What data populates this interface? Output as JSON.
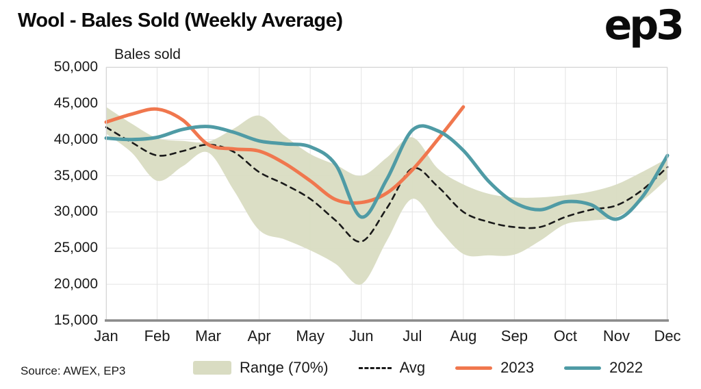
{
  "page": {
    "logo": "ep3",
    "source": "Source: AWEX, EP3"
  },
  "chart_data": {
    "type": "line",
    "title": "Wool - Bales Sold (Weekly Average)",
    "inner_axis_label": "Bales sold",
    "x_tick_labels": [
      "Jan",
      "Feb",
      "Mar",
      "Apr",
      "May",
      "Jun",
      "Jul",
      "Aug",
      "Sep",
      "Oct",
      "Nov",
      "Dec"
    ],
    "ylim": [
      15000,
      50000
    ],
    "ytick_step": 5000,
    "grid": true,
    "legend_position": "bottom",
    "colors": {
      "band": "#d9dcc2",
      "avg": "#1a1a1a",
      "y2023": "#f0774e",
      "y2022": "#4f9ba5",
      "grid": "#e3e3e3",
      "axis": "#8a8a8a",
      "border": "#d6d6d6"
    },
    "band": {
      "name": "Range (70%)",
      "color": "#d9dcc2",
      "x": [
        0,
        0.5,
        1,
        1.5,
        2,
        2.5,
        3,
        3.5,
        4,
        4.5,
        5,
        5.5,
        6,
        6.5,
        7,
        7.5,
        8,
        8.5,
        9,
        9.5,
        10,
        10.5,
        11
      ],
      "upper": [
        44500,
        42200,
        40200,
        39800,
        39700,
        41500,
        43300,
        40500,
        38000,
        36500,
        35000,
        37500,
        40300,
        36000,
        33800,
        32500,
        32000,
        32000,
        32300,
        32800,
        33800,
        35500,
        37400
      ],
      "lower": [
        40800,
        38200,
        34300,
        36300,
        38200,
        33000,
        27500,
        26200,
        24700,
        22800,
        20000,
        26000,
        31800,
        27800,
        24200,
        24000,
        24100,
        26000,
        28300,
        28800,
        29300,
        31500,
        34600
      ]
    },
    "series": [
      {
        "name": "Avg",
        "color": "#1a1a1a",
        "dash": true,
        "width": 2.6,
        "x": [
          0,
          0.5,
          1,
          1.5,
          2,
          2.5,
          3,
          3.5,
          4,
          4.5,
          5,
          5.5,
          6,
          6.5,
          7,
          7.5,
          8,
          8.5,
          9,
          9.5,
          10,
          10.5,
          11
        ],
        "values": [
          41700,
          39600,
          37800,
          38400,
          39300,
          38300,
          35500,
          33800,
          31800,
          28800,
          25900,
          30500,
          36000,
          33500,
          30000,
          28600,
          27900,
          27900,
          29300,
          30300,
          30900,
          33000,
          36200
        ]
      },
      {
        "name": "2023",
        "color": "#f0774e",
        "dash": false,
        "width": 5,
        "x": [
          0,
          0.5,
          1,
          1.5,
          2,
          2.5,
          3,
          3.5,
          4,
          4.5,
          5,
          5.5,
          6,
          6.5,
          7
        ],
        "values": [
          42400,
          43500,
          44200,
          42700,
          39300,
          38700,
          38400,
          36700,
          34300,
          31700,
          31300,
          32600,
          35800,
          40000,
          44500
        ]
      },
      {
        "name": "2022",
        "color": "#4f9ba5",
        "dash": false,
        "width": 5,
        "x": [
          0,
          0.5,
          1,
          1.5,
          2,
          2.5,
          3,
          3.5,
          4,
          4.5,
          5,
          5.5,
          6,
          6.5,
          7,
          7.5,
          8,
          8.5,
          9,
          9.5,
          10,
          10.5,
          11
        ],
        "values": [
          40200,
          40000,
          40300,
          41400,
          41800,
          41000,
          39800,
          39400,
          39000,
          36500,
          29300,
          34500,
          41300,
          41200,
          38500,
          34200,
          31300,
          30300,
          31400,
          31000,
          29000,
          32000,
          37800
        ]
      }
    ],
    "legend": [
      {
        "label": "Range (70%)",
        "type": "band",
        "color": "#d9dcc2"
      },
      {
        "label": "Avg",
        "type": "dashed-line",
        "color": "#1a1a1a"
      },
      {
        "label": "2023",
        "type": "line",
        "color": "#f0774e"
      },
      {
        "label": "2022",
        "type": "line",
        "color": "#4f9ba5"
      }
    ]
  }
}
